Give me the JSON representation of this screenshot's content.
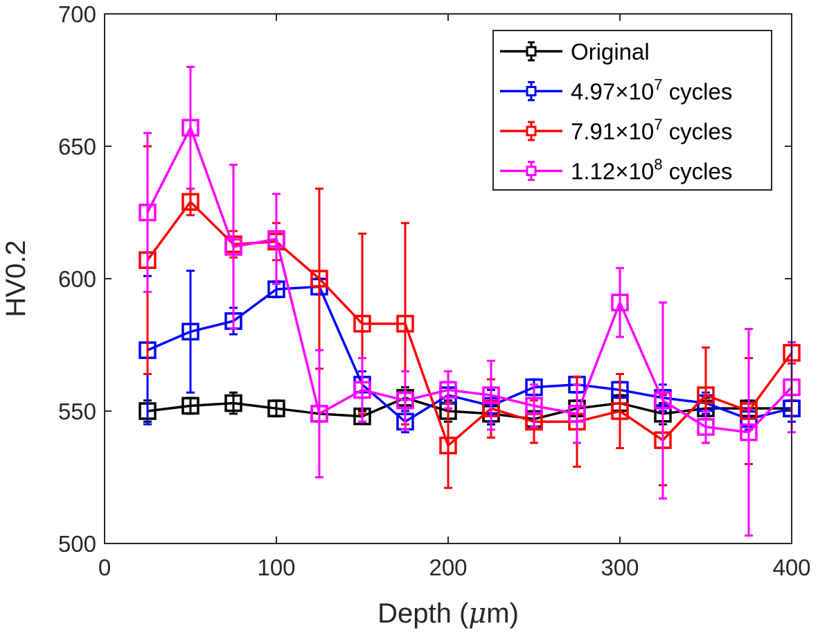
{
  "chart_data": {
    "type": "line",
    "title": "",
    "xlabel": "Depth (",
    "xlabel_mu": "μ",
    "xlabel_unit": "m)",
    "ylabel": "HV0.2",
    "xlim": [
      0,
      400
    ],
    "ylim": [
      500,
      700
    ],
    "xticks": [
      0,
      100,
      200,
      300,
      400
    ],
    "yticks": [
      500,
      550,
      600,
      650,
      700
    ],
    "grid": false,
    "legend_position": "top-right",
    "x": [
      25,
      50,
      75,
      100,
      125,
      150,
      175,
      200,
      225,
      250,
      275,
      300,
      325,
      350,
      375,
      400
    ],
    "series": [
      {
        "name": "Original",
        "label_main": "Original",
        "label_exp": "",
        "label_tail": "",
        "color": "#000000",
        "values": [
          550,
          552,
          553,
          551,
          549,
          548,
          555,
          550,
          549,
          547,
          551,
          553,
          549,
          551,
          551,
          551
        ],
        "errors": [
          4,
          3,
          4,
          3,
          3,
          2,
          4,
          4,
          4,
          3,
          3,
          3,
          4,
          4,
          3,
          3
        ]
      },
      {
        "name": "4.97×10^7 cycles",
        "label_main": "4.97×10",
        "label_exp": "7",
        "label_tail": " cycles",
        "color": "#0000ff",
        "values": [
          573,
          580,
          584,
          596,
          597,
          560,
          546,
          556,
          552,
          559,
          560,
          558,
          555,
          553,
          547,
          551
        ],
        "errors": [
          28,
          23,
          5,
          3,
          3,
          5,
          4,
          5,
          6,
          3,
          3,
          3,
          5,
          4,
          4,
          5
        ]
      },
      {
        "name": "7.91×10^7 cycles",
        "label_main": "7.91×10",
        "label_exp": "7",
        "label_tail": " cycles",
        "color": "#ff0000",
        "values": [
          607,
          629,
          613,
          614,
          600,
          583,
          583,
          537,
          551,
          546,
          546,
          550,
          539,
          556,
          550,
          572
        ],
        "errors": [
          43,
          5,
          5,
          7,
          34,
          34,
          38,
          16,
          11,
          8,
          17,
          14,
          17,
          18,
          20,
          4
        ]
      },
      {
        "name": "1.12×10^8 cycles",
        "label_main": "1.12×10",
        "label_exp": "8",
        "label_tail": " cycles",
        "color": "#ff00ff",
        "values": [
          625,
          657,
          612,
          615,
          549,
          558,
          554,
          558,
          556,
          552,
          549,
          591,
          554,
          544,
          542,
          559
        ],
        "errors": [
          30,
          23,
          31,
          17,
          24,
          12,
          11,
          7,
          13,
          8,
          11,
          13,
          37,
          6,
          39,
          17
        ]
      }
    ]
  }
}
